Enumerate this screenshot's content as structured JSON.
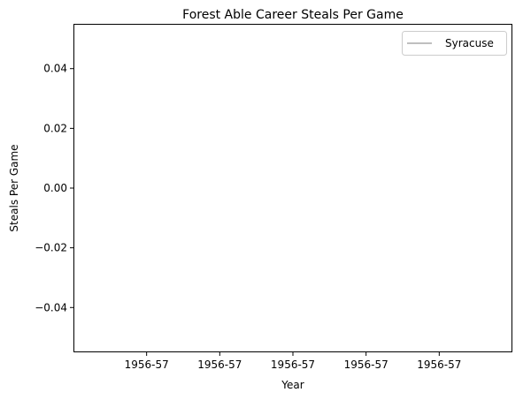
{
  "chart_data": {
    "type": "line",
    "title": "Forest Able Career Steals Per Game",
    "xlabel": "Year",
    "ylabel": "Steals Per Game",
    "x_tick_labels": [
      "1956-57",
      "1956-57",
      "1956-57",
      "1956-57",
      "1956-57"
    ],
    "y_ticks": [
      -0.04,
      -0.02,
      0.0,
      0.02,
      0.04
    ],
    "y_tick_labels": [
      "−0.04",
      "−0.02",
      "0.00",
      "0.02",
      "0.04"
    ],
    "ylim": [
      -0.055,
      0.055
    ],
    "series": [
      {
        "name": "Syracuse",
        "x": [
          "1956-57"
        ],
        "values": [
          0.0
        ],
        "color": "#bfbfbf"
      }
    ],
    "legend_placement": "top-right",
    "grid": false
  }
}
